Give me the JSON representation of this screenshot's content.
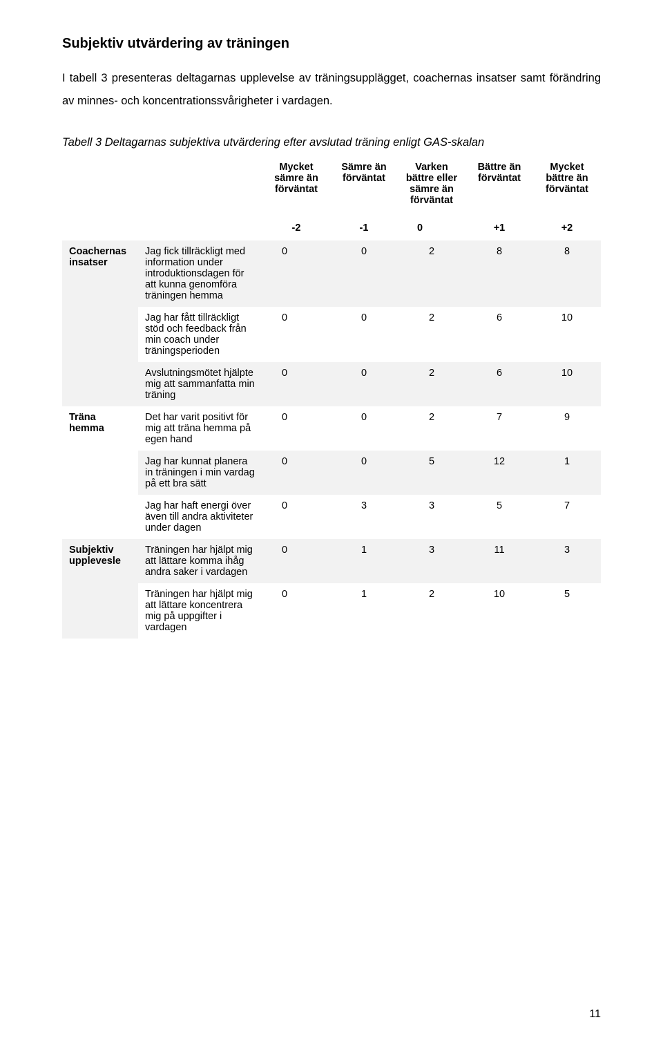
{
  "heading": "Subjektiv utvärdering av träningen",
  "intro": "I tabell 3 presenteras deltagarnas upplevelse av träningsupplägget, coachernas insatser samt förändring av minnes- och koncentrationssvårigheter i vardagen.",
  "caption": "Tabell 3 Deltagarnas subjektiva utvärdering efter avslutad träning enligt GAS-skalan",
  "columns": [
    "Mycket sämre än förväntat",
    "Sämre än förväntat",
    "Varken bättre eller sämre än förväntat",
    "Bättre än förväntat",
    "Mycket bättre än förväntat"
  ],
  "scale": [
    "-2",
    "-1",
    "0",
    "+1",
    "+2"
  ],
  "categories": [
    {
      "name": "Coachernas insatser",
      "rows": [
        {
          "item": "Jag fick tillräckligt med information under introduktionsdagen för att kunna genomföra träningen hemma",
          "v": [
            "0",
            "0",
            "2",
            "8",
            "8"
          ]
        },
        {
          "item": "Jag har fått tillräckligt stöd och feedback från min coach under träningsperioden",
          "v": [
            "0",
            "0",
            "2",
            "6",
            "10"
          ]
        },
        {
          "item": "Avslutningsmötet hjälpte mig att sammanfatta min träning",
          "v": [
            "0",
            "0",
            "2",
            "6",
            "10"
          ]
        }
      ]
    },
    {
      "name": "Träna hemma",
      "rows": [
        {
          "item": "Det har varit positivt för mig att träna hemma på egen hand",
          "v": [
            "0",
            "0",
            "2",
            "7",
            "9"
          ]
        },
        {
          "item": "Jag har kunnat planera in träningen i min vardag på ett bra sätt",
          "v": [
            "0",
            "0",
            "5",
            "12",
            "1"
          ]
        },
        {
          "item": "Jag har haft energi över även till andra aktiviteter under dagen",
          "v": [
            "0",
            "3",
            "3",
            "5",
            "7"
          ]
        }
      ]
    },
    {
      "name": "Subjektiv upplevesle",
      "rows": [
        {
          "item": "Träningen har hjälpt mig att lättare komma ihåg andra saker i vardagen",
          "v": [
            "0",
            "1",
            "3",
            "11",
            "3"
          ]
        },
        {
          "item": "Träningen har hjälpt mig att lättare koncentrera mig på uppgifter i vardagen",
          "v": [
            "0",
            "1",
            "2",
            "10",
            "5"
          ]
        }
      ]
    }
  ],
  "pagenum": "11",
  "style": {
    "stripe_even": "#f2f2f2",
    "stripe_odd": "#ffffff",
    "text_color": "#000000",
    "bg": "#ffffff"
  }
}
